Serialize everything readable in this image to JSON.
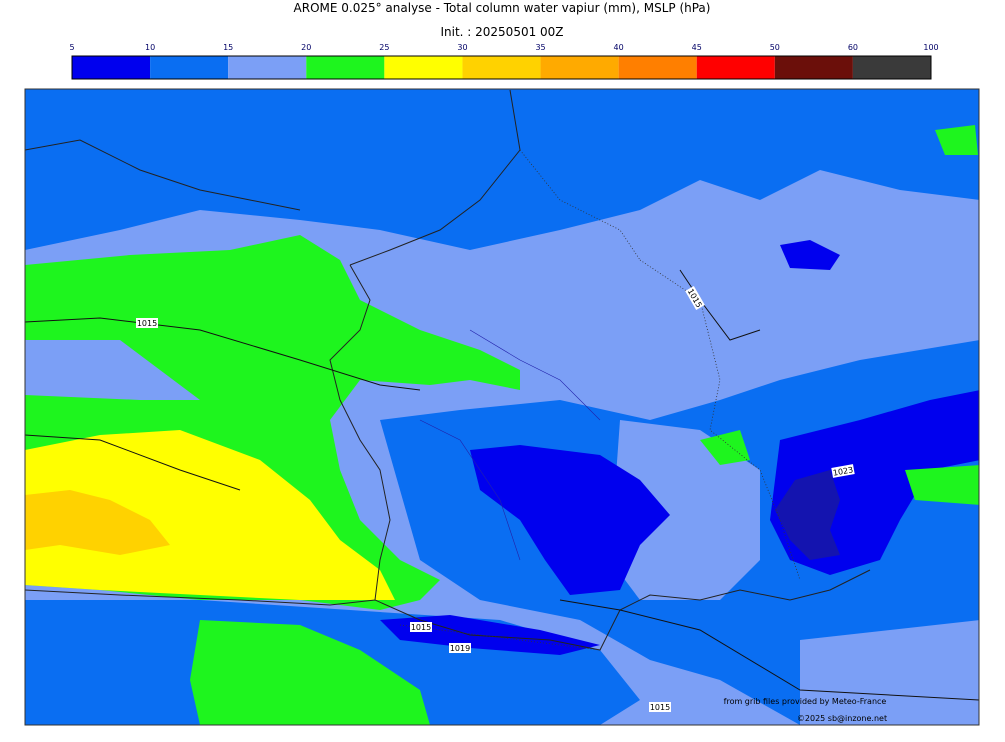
{
  "title": "AROME 0.025° analyse - Total column water vapiur (mm), MSLP (hPa)",
  "subtitle": "Init. : 20250501 00Z",
  "colorbar": {
    "ticks": [
      5,
      10,
      15,
      20,
      25,
      30,
      35,
      40,
      45,
      50,
      60,
      100
    ],
    "colors": [
      "#0000ee",
      "#0a6ef2",
      "#7b9ff6",
      "#1ef51e",
      "#ffff00",
      "#ffd200",
      "#ffaa00",
      "#ff7f00",
      "#ff0000",
      "#6b0f0a",
      "#3a3a3a"
    ]
  },
  "isobar_labels": [
    "1015",
    "1015",
    "1023",
    "1015",
    "1019",
    "1015"
  ],
  "credits": [
    "from grib files provided by Meteo-France",
    "©2025 sb@inzone.net"
  ]
}
